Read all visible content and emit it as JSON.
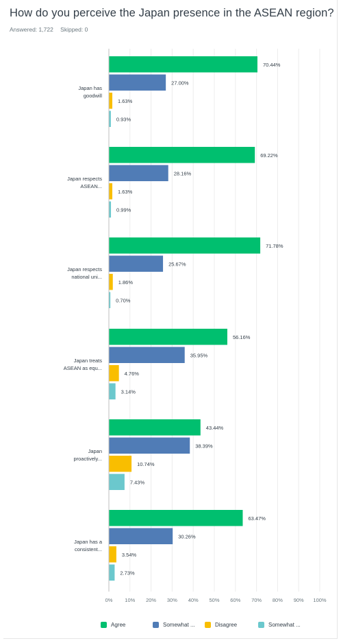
{
  "question": {
    "title": "How do you perceive the Japan presence in the ASEAN region?",
    "answered": "Answered: 1,722",
    "skipped": "Skipped: 0"
  },
  "chart_data": {
    "type": "bar",
    "orientation": "horizontal",
    "categories": [
      [
        "Japan has",
        "goodwill"
      ],
      [
        "Japan respects",
        "ASEAN..."
      ],
      [
        "Japan respects",
        "national uni..."
      ],
      [
        "Japan treats",
        "ASEAN as equ..."
      ],
      [
        "Japan",
        "proactively..."
      ],
      [
        "Japan has a",
        "consistent..."
      ]
    ],
    "series": [
      {
        "name": "Agree",
        "color": "#00bf6f",
        "values": [
          70.44,
          69.22,
          71.78,
          56.16,
          43.44,
          63.47
        ],
        "labels": [
          "70.44%",
          "69.22%",
          "71.78%",
          "56.16%",
          "43.44%",
          "63.47%"
        ]
      },
      {
        "name": "Somewhat ...",
        "color": "#507cb6",
        "values": [
          27.0,
          28.16,
          25.67,
          35.95,
          38.39,
          30.26
        ],
        "labels": [
          "27.00%",
          "28.16%",
          "25.67%",
          "35.95%",
          "38.39%",
          "30.26%"
        ]
      },
      {
        "name": "Disagree",
        "color": "#f9be00",
        "values": [
          1.63,
          1.63,
          1.86,
          4.76,
          10.74,
          3.54
        ],
        "labels": [
          "1.63%",
          "1.63%",
          "1.86%",
          "4.76%",
          "10.74%",
          "3.54%"
        ]
      },
      {
        "name": "Somewhat ...",
        "color": "#6bc8cd",
        "values": [
          0.93,
          0.99,
          0.7,
          3.14,
          7.43,
          2.73
        ],
        "labels": [
          "0.93%",
          "0.99%",
          "0.70%",
          "3.14%",
          "7.43%",
          "2.73%"
        ]
      }
    ],
    "xlim": [
      0,
      100
    ],
    "xticks": [
      "0%",
      "10%",
      "20%",
      "30%",
      "40%",
      "50%",
      "60%",
      "70%",
      "80%",
      "90%",
      "100%"
    ],
    "grid": true,
    "legend": "bottom"
  }
}
